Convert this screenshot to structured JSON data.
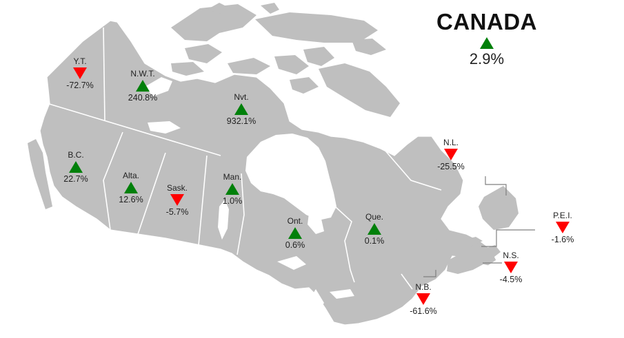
{
  "national": {
    "title": "CANADA",
    "value": "2.9%",
    "direction": "up"
  },
  "colors": {
    "land": "#bfbfbf",
    "up": "#00800a",
    "down": "#ff0000",
    "background": "#ffffff"
  },
  "regions": [
    {
      "abbr": "Y.T.",
      "value": "-72.7%",
      "direction": "down"
    },
    {
      "abbr": "N.W.T.",
      "value": "240.8%",
      "direction": "up"
    },
    {
      "abbr": "Nvt.",
      "value": "932.1%",
      "direction": "up"
    },
    {
      "abbr": "B.C.",
      "value": "22.7%",
      "direction": "up"
    },
    {
      "abbr": "Alta.",
      "value": "12.6%",
      "direction": "up"
    },
    {
      "abbr": "Sask.",
      "value": "-5.7%",
      "direction": "down"
    },
    {
      "abbr": "Man.",
      "value": "1.0%",
      "direction": "up"
    },
    {
      "abbr": "Ont.",
      "value": "0.6%",
      "direction": "up"
    },
    {
      "abbr": "Que.",
      "value": "0.1%",
      "direction": "up"
    },
    {
      "abbr": "N.L.",
      "value": "-25.5%",
      "direction": "down"
    },
    {
      "abbr": "P.E.I.",
      "value": "-1.6%",
      "direction": "down"
    },
    {
      "abbr": "N.S.",
      "value": "-4.5%",
      "direction": "down"
    },
    {
      "abbr": "N.B.",
      "value": "-61.6%",
      "direction": "down"
    }
  ]
}
